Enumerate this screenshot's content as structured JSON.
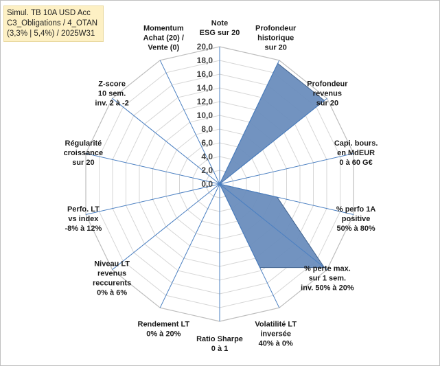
{
  "title_box": {
    "line1": "Simul. TB 10A USD Acc",
    "line2": "C3_Obligations / 4_OTAN",
    "line3": "(3,3% | 5,4%) / 2025W31"
  },
  "chart_data": {
    "type": "radar",
    "rmin": 0,
    "rmax": 20,
    "tick_step": 2,
    "tick_labels": [
      "0,0",
      "2,0",
      "4,0",
      "6,0",
      "8,0",
      "10,0",
      "12,0",
      "14,0",
      "16,0",
      "18,0",
      "20,0"
    ],
    "categories": [
      [
        "Note",
        "ESG sur 20"
      ],
      [
        "Profondeur",
        "historique",
        "sur 20"
      ],
      [
        "Profondeur",
        "revenus",
        "sur 20"
      ],
      [
        "Capi. bours.",
        "en MdEUR",
        "0 à 60 G€"
      ],
      [
        "% perfo 1A",
        "positive",
        "50% à 80%"
      ],
      [
        "% perte max.",
        "sur 1 sem.",
        "inv. 50% à 20%"
      ],
      [
        "Volatilité LT",
        "inversée",
        "40% à 0%"
      ],
      [
        "Ratio Sharpe",
        "0 à 1"
      ],
      [
        "Rendement LT",
        "0% à 20%"
      ],
      [
        "Niveau LT",
        "revenus",
        "reccurents",
        "0% à 6%"
      ],
      [
        "Perfo. LT",
        "vs index",
        "-8% à 12%"
      ],
      [
        "Régularité",
        "croissance",
        "sur 20"
      ],
      [
        "Z-score",
        "10 sem.",
        "inv. 2 à -2"
      ],
      [
        "Momentum",
        "Achat (20) /",
        "Vente (0)"
      ]
    ],
    "values": [
      0,
      19.5,
      19.5,
      0,
      8.6,
      19.5,
      13.5,
      0,
      0,
      0,
      0,
      0,
      0,
      0
    ],
    "grid": true,
    "colors": {
      "fill": "#6a8dbd",
      "stroke": "#40628e",
      "grid": "#d6d6d6",
      "axis": "#4a7fc1"
    }
  }
}
